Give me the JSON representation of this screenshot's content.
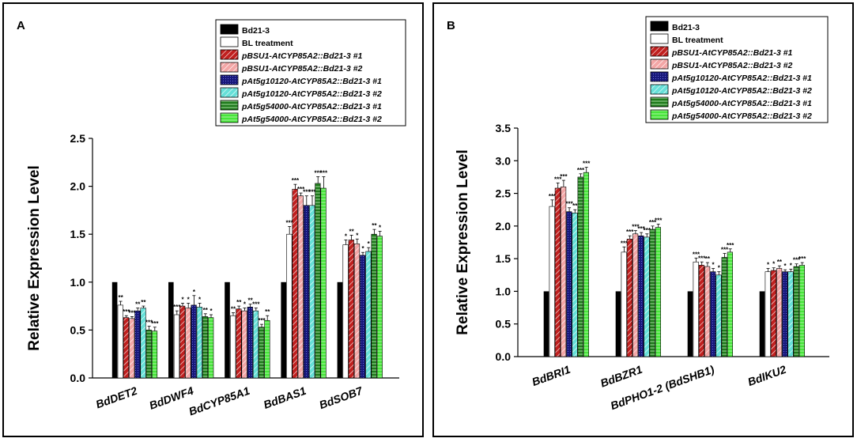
{
  "legend_entries": [
    "Bd21-3",
    "BL treatment",
    "pBSU1-AtCYP85A2::Bd21-3 #1",
    "pBSU1-AtCYP85A2::Bd21-3 #2",
    "pAt5g10120-AtCYP85A2::Bd21-3 #1",
    "pAt5g10120-AtCYP85A2::Bd21-3 #2",
    "pAt5g54000-AtCYP85A2::Bd21-3 #1",
    "pAt5g54000-AtCYP85A2::Bd21-3 #2"
  ],
  "colors": {
    "bd21": "#000000",
    "bl": "#ffffff",
    "bsu1": "#c0201f",
    "bsu1_light": "#f3a6a6",
    "at10120": "#17187a",
    "at10120_light": "#66e0d8",
    "at54000": "#1f7a1c",
    "at54000_light": "#47e63a"
  },
  "chart_data": [
    {
      "panel_label": "A",
      "type": "bar",
      "title": "",
      "xlabel": "",
      "ylabel": "Relative Expression Level",
      "ylim": [
        0,
        2.5
      ],
      "yticks": [
        "0.0",
        "0.5",
        "1.0",
        "1.5",
        "2.0",
        "2.5"
      ],
      "legend_placement": "top-right",
      "categories": [
        "BdDET2",
        "BdDWF4",
        "BdCYP85A1",
        "BdBAS1",
        "BdSOB7"
      ],
      "series": [
        {
          "name": "Bd21-3",
          "values": [
            1.0,
            1.0,
            1.0,
            1.0,
            1.0
          ],
          "errors": [
            0,
            0,
            0,
            0,
            0
          ],
          "sig": [
            "",
            "",
            "",
            "",
            ""
          ]
        },
        {
          "name": "BL treatment",
          "values": [
            0.76,
            0.66,
            0.65,
            1.5,
            1.39
          ],
          "errors": [
            0.04,
            0.04,
            0.03,
            0.08,
            0.05
          ],
          "sig": [
            "**",
            "***",
            "**",
            "***",
            "*"
          ]
        },
        {
          "name": "pBSU1-AtCYP85A2::Bd21-3 #1",
          "values": [
            0.63,
            0.75,
            0.72,
            1.97,
            1.44
          ],
          "errors": [
            0.02,
            0.03,
            0.03,
            0.05,
            0.05
          ],
          "sig": [
            "***",
            "*",
            "**",
            "***",
            "**"
          ]
        },
        {
          "name": "pBSU1-AtCYP85A2::Bd21-3 #2",
          "values": [
            0.62,
            0.73,
            0.7,
            1.9,
            1.4
          ],
          "errors": [
            0.02,
            0.05,
            0.03,
            0.03,
            0.05
          ],
          "sig": [
            "***",
            "*",
            "*",
            "***",
            "*"
          ]
        },
        {
          "name": "pAt5g10120-AtCYP85A2::Bd21-3 #1",
          "values": [
            0.7,
            0.76,
            0.74,
            1.8,
            1.28
          ],
          "errors": [
            0.03,
            0.1,
            0.03,
            0.1,
            0.03
          ],
          "sig": [
            "**",
            "*",
            "**",
            "***",
            "*"
          ]
        },
        {
          "name": "pAt5g10120-AtCYP85A2::Bd21-3 #2",
          "values": [
            0.73,
            0.74,
            0.7,
            1.8,
            1.32
          ],
          "errors": [
            0.02,
            0.04,
            0.03,
            0.1,
            0.04
          ],
          "sig": [
            "**",
            "*",
            "***",
            "***",
            "*"
          ]
        },
        {
          "name": "pAt5g54000-AtCYP85A2::Bd21-3 #1",
          "values": [
            0.5,
            0.64,
            0.53,
            2.03,
            1.5
          ],
          "errors": [
            0.04,
            0.03,
            0.03,
            0.07,
            0.05
          ],
          "sig": [
            "***",
            "**",
            "***",
            "***",
            "**"
          ]
        },
        {
          "name": "pAt5g54000-AtCYP85A2::Bd21-3 #2",
          "values": [
            0.49,
            0.63,
            0.6,
            1.98,
            1.48
          ],
          "errors": [
            0.04,
            0.03,
            0.05,
            0.12,
            0.05
          ],
          "sig": [
            "***",
            "*",
            "**",
            "***",
            "*"
          ]
        }
      ]
    },
    {
      "panel_label": "B",
      "type": "bar",
      "title": "",
      "xlabel": "",
      "ylabel": "Relative Expression Level",
      "ylim": [
        0,
        3.5
      ],
      "yticks": [
        "0.0",
        "0.5",
        "1.0",
        "1.5",
        "2.0",
        "2.5",
        "3.0",
        "3.5"
      ],
      "legend_placement": "top-right",
      "categories": [
        "BdBRI1",
        "BdBZR1",
        "BdPHO1-2 (BdSHB1)",
        "BdIKU2"
      ],
      "series": [
        {
          "name": "Bd21-3",
          "values": [
            1.0,
            1.0,
            1.0,
            1.0
          ],
          "errors": [
            0,
            0,
            0,
            0
          ],
          "sig": [
            "",
            "",
            "",
            ""
          ]
        },
        {
          "name": "BL treatment",
          "values": [
            2.3,
            1.6,
            1.45,
            1.3
          ],
          "errors": [
            0.1,
            0.08,
            0.06,
            0.05
          ],
          "sig": [
            "***",
            "***",
            "***",
            "*"
          ]
        },
        {
          "name": "pBSU1-AtCYP85A2::Bd21-3 #1",
          "values": [
            2.58,
            1.8,
            1.4,
            1.32
          ],
          "errors": [
            0.08,
            0.05,
            0.05,
            0.04
          ],
          "sig": [
            "***",
            "***",
            "***",
            "*"
          ]
        },
        {
          "name": "pBSU1-AtCYP85A2::Bd21-3 #2",
          "values": [
            2.6,
            1.88,
            1.38,
            1.35
          ],
          "errors": [
            0.1,
            0.05,
            0.06,
            0.04
          ],
          "sig": [
            "***",
            "***",
            "**",
            "**"
          ]
        },
        {
          "name": "pAt5g10120-AtCYP85A2::Bd21-3 #1",
          "values": [
            2.22,
            1.85,
            1.3,
            1.3
          ],
          "errors": [
            0.06,
            0.05,
            0.05,
            0.03
          ],
          "sig": [
            "***",
            "***",
            "*",
            "*"
          ]
        },
        {
          "name": "pAt5g10120-AtCYP85A2::Bd21-3 #2",
          "values": [
            2.2,
            1.83,
            1.25,
            1.3
          ],
          "errors": [
            0.05,
            0.05,
            0.05,
            0.04
          ],
          "sig": [
            "**",
            "***",
            "*",
            "*"
          ]
        },
        {
          "name": "pAt5g54000-AtCYP85A2::Bd21-3 #1",
          "values": [
            2.75,
            1.95,
            1.52,
            1.38
          ],
          "errors": [
            0.05,
            0.05,
            0.06,
            0.04
          ],
          "sig": [
            "***",
            "***",
            "***",
            "***"
          ]
        },
        {
          "name": "pAt5g54000-AtCYP85A2::Bd21-3 #2",
          "values": [
            2.82,
            1.98,
            1.6,
            1.4
          ],
          "errors": [
            0.08,
            0.05,
            0.05,
            0.04
          ],
          "sig": [
            "***",
            "***",
            "***",
            "***"
          ]
        }
      ]
    }
  ]
}
